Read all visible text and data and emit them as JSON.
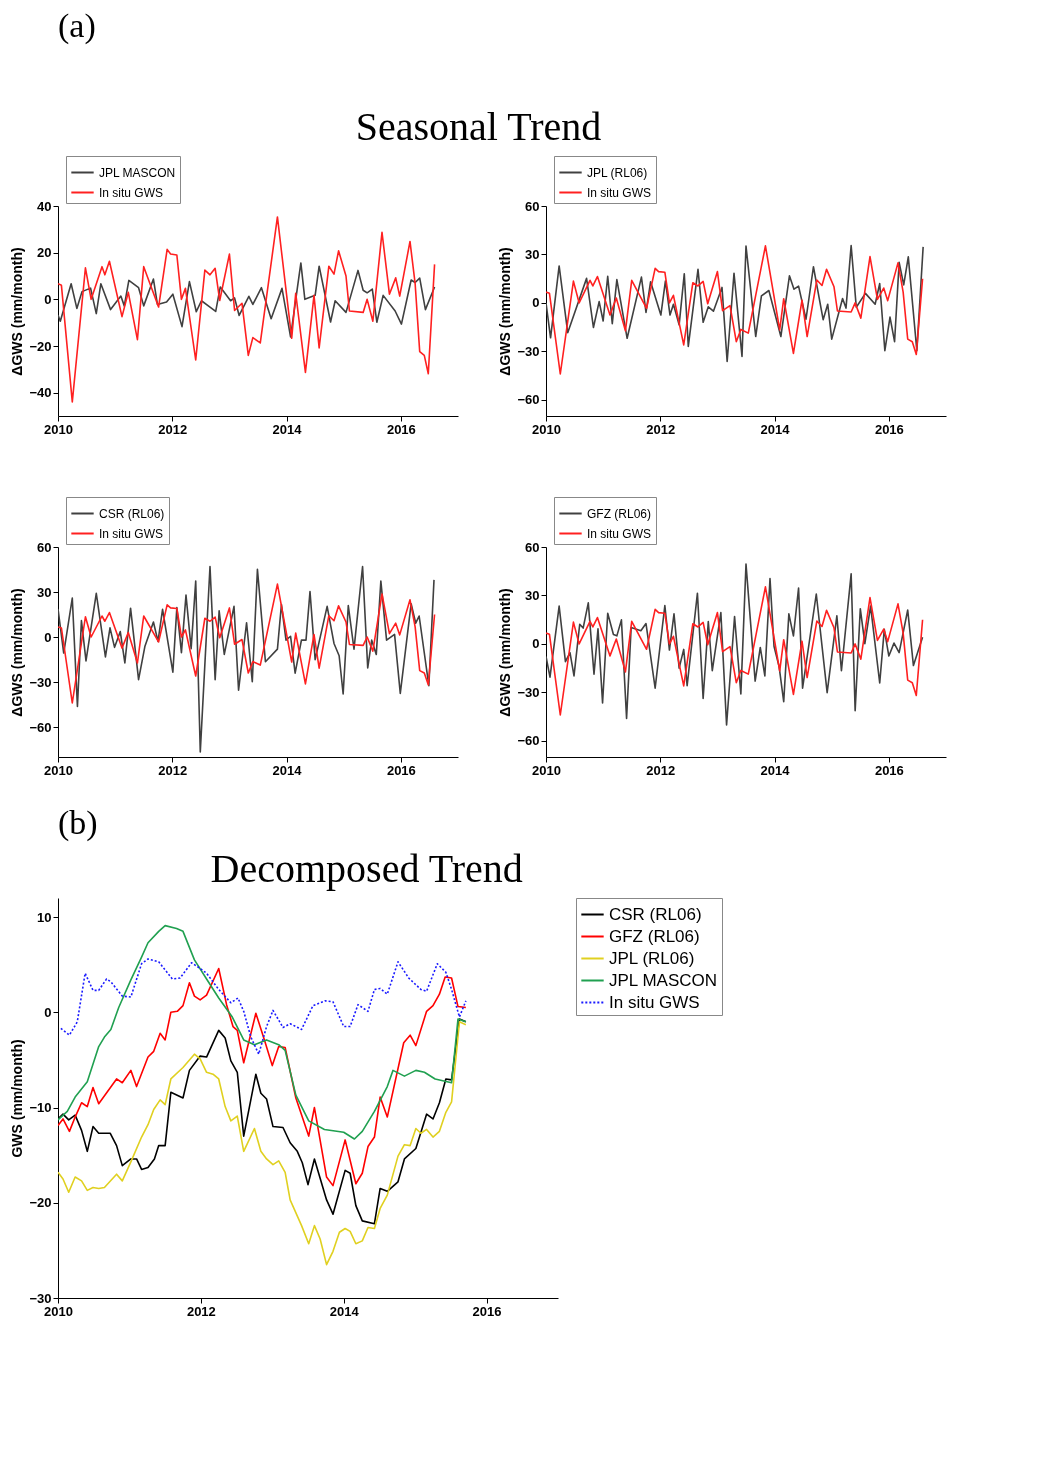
{
  "chart_data": [
    {
      "type": "line",
      "title": "Seasonal Trend",
      "annotations": [
        "(a)"
      ],
      "ylabel": "ΔGWS (mm/month)",
      "xlim": [
        2010,
        2017
      ],
      "xticks": [
        2010,
        2012,
        2014,
        2016
      ],
      "ylim": [
        -50,
        40
      ],
      "yticks": [
        -40,
        -20,
        0,
        20,
        40
      ],
      "grid": false,
      "legend": "top left",
      "series": [
        {
          "name": "JPL MASCON",
          "color": "#404040",
          "x": [
            2010.0,
            2010.04,
            2010.23,
            2010.33,
            2010.42,
            2010.57,
            2010.67,
            2010.75,
            2010.92,
            2011.1,
            2011.16,
            2011.24,
            2011.41,
            2011.5,
            2011.67,
            2011.74,
            2011.9,
            2012.01,
            2012.17,
            2012.3,
            2012.42,
            2012.51,
            2012.66,
            2012.76,
            2012.84,
            2013.02,
            2013.09,
            2013.17,
            2013.34,
            2013.41,
            2013.56,
            2013.73,
            2013.92,
            2014.07,
            2014.25,
            2014.32,
            2014.5,
            2014.57,
            2014.77,
            2014.85,
            2015.04,
            2015.25,
            2015.34,
            2015.41,
            2015.5,
            2015.58,
            2015.69,
            2015.9,
            2016.01,
            2016.18,
            2016.25,
            2016.33,
            2016.43,
            2016.59
          ],
          "values": [
            -6.7,
            -9.4,
            6.7,
            -3.9,
            3.3,
            4.8,
            -6.1,
            6.7,
            -4.4,
            1.4,
            -2.8,
            8.1,
            5,
            -2.8,
            8.7,
            -2.2,
            -1.1,
            2.2,
            -11.7,
            7.6,
            -5.3,
            -0.6,
            -3.3,
            -5.2,
            5.3,
            -0.6,
            0.6,
            -6.9,
            1.3,
            -2.2,
            5,
            -8.3,
            4.7,
            -16.1,
            15.6,
            0,
            1.7,
            14.2,
            -9.7,
            -0.6,
            -5.6,
            12.4,
            3.9,
            2.8,
            4.4,
            -9.8,
            1.7,
            -5,
            -10.6,
            8.3,
            7.2,
            9.1,
            -4.4,
            5.3
          ]
        },
        {
          "name": "In situ GWS",
          "color": "#ff2020",
          "x": [
            2010.0,
            2010.06,
            2010.25,
            2010.48,
            2010.58,
            2010.77,
            2010.82,
            2010.9,
            2011.12,
            2011.23,
            2011.39,
            2011.5,
            2011.76,
            2011.91,
            2011.97,
            2012.08,
            2012.16,
            2012.23,
            2012.41,
            2012.57,
            2012.66,
            2012.75,
            2012.83,
            2013.0,
            2013.09,
            2013.22,
            2013.33,
            2013.41,
            2013.54,
            2013.84,
            2014.09,
            2014.16,
            2014.33,
            2014.48,
            2014.57,
            2014.74,
            2014.83,
            2014.91,
            2015.04,
            2015.1,
            2015.34,
            2015.41,
            2015.51,
            2015.67,
            2015.8,
            2015.91,
            2015.98,
            2016.16,
            2016.25,
            2016.33,
            2016.41,
            2016.48,
            2016.59
          ],
          "values": [
            6.7,
            6,
            -44,
            13.5,
            0,
            14,
            10.5,
            16.3,
            -7.4,
            3,
            -17.3,
            14,
            -3.3,
            21.4,
            19.4,
            19,
            0,
            4.7,
            -26,
            12.5,
            10.5,
            13.3,
            -0.5,
            19.4,
            -4.8,
            -1.7,
            -24,
            -16.4,
            -18.7,
            35.3,
            -16.7,
            2.6,
            -31.3,
            1.7,
            -20.8,
            14.2,
            10.8,
            20.8,
            10,
            -5,
            -5.6,
            0,
            -9.4,
            28.7,
            2.2,
            9.2,
            1.4,
            24.8,
            6.7,
            -22.4,
            -24,
            -31.9,
            15
          ]
        }
      ]
    },
    {
      "type": "line",
      "ylabel": "ΔGWS (mm/month)",
      "xlim": [
        2010,
        2017
      ],
      "xticks": [
        2010,
        2012,
        2014,
        2016
      ],
      "ylim": [
        -70,
        60
      ],
      "yticks": [
        -60,
        -30,
        0,
        30,
        60
      ],
      "grid": false,
      "legend": "top left",
      "series": [
        {
          "name": "JPL (RL06)",
          "color": "#404040",
          "x": [
            2010,
            2010.08,
            2010.23,
            2010.38,
            2010.71,
            2010.83,
            2010.93,
            2011.0,
            2011.08,
            2011.16,
            2011.24,
            2011.42,
            2011.67,
            2011.75,
            2011.83,
            2012.01,
            2012.09,
            2012.17,
            2012.23,
            2012.33,
            2012.42,
            2012.49,
            2012.66,
            2012.75,
            2012.84,
            2012.93,
            2013.08,
            2013.17,
            2013.29,
            2013.43,
            2013.5,
            2013.67,
            2013.77,
            2013.9,
            2014.11,
            2014.26,
            2014.34,
            2014.42,
            2014.55,
            2014.68,
            2014.85,
            2014.93,
            2015.0,
            2015.19,
            2015.25,
            2015.34,
            2015.43,
            2015.59,
            2015.76,
            2015.84,
            2015.93,
            2016.02,
            2016.1,
            2016.18,
            2016.26,
            2016.34,
            2016.49,
            2016.6
          ],
          "values": [
            0,
            -21.6,
            22.9,
            -18.4,
            15.2,
            -15.2,
            0.8,
            -11.2,
            16.5,
            -12.8,
            14.4,
            -21.9,
            16,
            -5.9,
            13.1,
            -7.5,
            13.6,
            -7.5,
            -0.8,
            -13.6,
            18.1,
            -26.9,
            20.8,
            -12,
            -2.4,
            -5.1,
            9.6,
            -36.3,
            18.4,
            -33.1,
            35.2,
            -20.8,
            4.3,
            7.7,
            -20.8,
            16.8,
            8.5,
            10.4,
            -10.1,
            22.4,
            -10.4,
            -0.8,
            -22.4,
            2.7,
            -3.2,
            35.5,
            -2.7,
            5.9,
            -0.8,
            12,
            -29.6,
            -8.8,
            -24,
            25.1,
            11.2,
            28.5,
            -29.6,
            34.7
          ]
        },
        {
          "name": "In situ GWS",
          "color": "#ff2020",
          "x": [
            2010.0,
            2010.06,
            2010.25,
            2010.48,
            2010.58,
            2010.77,
            2010.82,
            2010.9,
            2011.12,
            2011.23,
            2011.39,
            2011.5,
            2011.76,
            2011.91,
            2011.97,
            2012.08,
            2012.16,
            2012.23,
            2012.41,
            2012.57,
            2012.66,
            2012.75,
            2012.83,
            2013.0,
            2013.09,
            2013.22,
            2013.33,
            2013.41,
            2013.54,
            2013.84,
            2014.09,
            2014.16,
            2014.33,
            2014.48,
            2014.57,
            2014.74,
            2014.83,
            2014.91,
            2015.04,
            2015.1,
            2015.34,
            2015.41,
            2015.51,
            2015.67,
            2015.8,
            2015.91,
            2015.98,
            2016.16,
            2016.25,
            2016.33,
            2016.41,
            2016.48,
            2016.59
          ],
          "values": [
            6.7,
            6,
            -44,
            13.5,
            0,
            14,
            10.5,
            16.3,
            -7.4,
            3,
            -17.3,
            14,
            -3.3,
            21.4,
            19.4,
            19,
            0,
            4.7,
            -26,
            12.5,
            10.5,
            13.3,
            -0.5,
            19.4,
            -4.8,
            -1.7,
            -24,
            -16.4,
            -18.7,
            35.3,
            -16.7,
            2.6,
            -31.3,
            1.7,
            -20.8,
            14.2,
            10.8,
            20.8,
            10,
            -5,
            -5.6,
            0,
            -9.4,
            28.7,
            2.2,
            9.2,
            1.4,
            24.8,
            6.7,
            -22.4,
            -24,
            -31.9,
            15
          ]
        }
      ]
    },
    {
      "type": "line",
      "ylabel": "ΔGWS (mm/month)",
      "xlim": [
        2010,
        2017
      ],
      "xticks": [
        2010,
        2012,
        2014,
        2016
      ],
      "ylim": [
        -80,
        60
      ],
      "yticks": [
        -60,
        -30,
        0,
        30,
        60
      ],
      "grid": false,
      "legend": "top left",
      "series": [
        {
          "name": "CSR (RL06)",
          "color": "#404040",
          "x": [
            2010,
            2010.1,
            2010.25,
            2010.34,
            2010.41,
            2010.49,
            2010.67,
            2010.83,
            2010.91,
            2010.99,
            2011.09,
            2011.17,
            2011.27,
            2011.41,
            2011.52,
            2011.67,
            2011.75,
            2011.83,
            2012.01,
            2012.08,
            2012.16,
            2012.24,
            2012.33,
            2012.41,
            2012.49,
            2012.66,
            2012.75,
            2012.82,
            2012.91,
            2013.08,
            2013.16,
            2013.3,
            2013.4,
            2013.49,
            2013.63,
            2013.84,
            2013.91,
            2013.99,
            2014.07,
            2014.15,
            2014.26,
            2014.34,
            2014.41,
            2014.5,
            2014.71,
            2014.83,
            2014.92,
            2014.99,
            2015.08,
            2015.18,
            2015.33,
            2015.42,
            2015.49,
            2015.57,
            2015.65,
            2015.75,
            2015.89,
            2015.99,
            2016.18,
            2016.26,
            2016.32,
            2016.49,
            2016.58
          ],
          "values": [
            18.7,
            -10.7,
            26,
            -46.3,
            10.9,
            -15.9,
            29.1,
            -13.3,
            6.1,
            -6.9,
            3.6,
            -17.3,
            19.2,
            -28.4,
            -6.4,
            10,
            -2.9,
            18.4,
            -23.4,
            19.6,
            -10.4,
            27.9,
            -7.8,
            37.3,
            -76.6,
            47,
            -28.4,
            17.5,
            -11.6,
            20.4,
            -35.5,
            9.5,
            -29.8,
            45.1,
            -16.5,
            -8.1,
            21.7,
            -2.1,
            0.5,
            -24.1,
            -2.1,
            -2.1,
            30.3,
            -15.1,
            20.4,
            -4.3,
            -12.5,
            -38,
            21,
            -8.1,
            47,
            -20.6,
            -2.1,
            -11.6,
            37.3,
            -2.1,
            1.7,
            -37.6,
            22.2,
            9.2,
            14,
            -32.4,
            38.1
          ]
        },
        {
          "name": "In situ GWS",
          "color": "#ff2020",
          "x": [
            2010.0,
            2010.06,
            2010.25,
            2010.48,
            2010.58,
            2010.77,
            2010.82,
            2010.9,
            2011.12,
            2011.23,
            2011.39,
            2011.5,
            2011.76,
            2011.91,
            2011.97,
            2012.08,
            2012.16,
            2012.23,
            2012.41,
            2012.57,
            2012.66,
            2012.75,
            2012.83,
            2013.0,
            2013.09,
            2013.22,
            2013.33,
            2013.41,
            2013.54,
            2013.84,
            2014.09,
            2014.16,
            2014.33,
            2014.48,
            2014.57,
            2014.74,
            2014.83,
            2014.91,
            2015.04,
            2015.1,
            2015.34,
            2015.41,
            2015.51,
            2015.67,
            2015.8,
            2015.91,
            2015.98,
            2016.16,
            2016.25,
            2016.33,
            2016.41,
            2016.48,
            2016.59
          ],
          "values": [
            6.7,
            6,
            -44,
            13.5,
            0,
            14,
            10.5,
            16.3,
            -7.4,
            3,
            -17.3,
            14,
            -3.3,
            21.4,
            19.4,
            19,
            0,
            4.7,
            -26,
            12.5,
            10.5,
            13.3,
            -0.5,
            19.4,
            -4.8,
            -1.7,
            -24,
            -16.4,
            -18.7,
            35.3,
            -16.7,
            2.6,
            -31.3,
            1.7,
            -20.8,
            14.2,
            10.8,
            20.8,
            10,
            -5,
            -5.6,
            0,
            -9.4,
            28.7,
            2.2,
            9.2,
            1.4,
            24.8,
            6.7,
            -22.4,
            -24,
            -31.9,
            15
          ]
        }
      ]
    },
    {
      "type": "line",
      "ylabel": "ΔGWS (mm/month)",
      "xlim": [
        2010,
        2017
      ],
      "xticks": [
        2010,
        2012,
        2014,
        2016
      ],
      "ylim": [
        -70,
        60
      ],
      "yticks": [
        -60,
        -30,
        0,
        30,
        60
      ],
      "grid": false,
      "legend": "top left",
      "series": [
        {
          "name": "GFZ (RL06)",
          "color": "#404040",
          "x": [
            2010,
            2010.07,
            2010.23,
            2010.34,
            2010.42,
            2010.49,
            2010.59,
            2010.65,
            2010.74,
            2010.84,
            2010.91,
            2010.99,
            2011.08,
            2011.18,
            2011.24,
            2011.32,
            2011.41,
            2011.49,
            2011.66,
            2011.75,
            2011.91,
            2012.08,
            2012.16,
            2012.24,
            2012.33,
            2012.41,
            2012.47,
            2012.65,
            2012.75,
            2012.84,
            2012.91,
            2013.06,
            2013.16,
            2013.3,
            2013.41,
            2013.5,
            2013.66,
            2013.75,
            2013.83,
            2013.92,
            2013.99,
            2014.08,
            2014.16,
            2014.25,
            2014.33,
            2014.42,
            2014.49,
            2014.73,
            2014.92,
            2015.09,
            2015.17,
            2015.34,
            2015.41,
            2015.5,
            2015.58,
            2015.68,
            2015.84,
            2015.92,
            2016,
            2016.09,
            2016.18,
            2016.33,
            2016.43,
            2016.59
          ],
          "values": [
            -7.8,
            -20.6,
            23.4,
            -11,
            -5.4,
            -19.8,
            12.2,
            9.8,
            25.4,
            -18.7,
            9.4,
            -36.6,
            19,
            5.8,
            5,
            14.9,
            -46.2,
            10.1,
            8.2,
            12.6,
            -27.4,
            23.8,
            -3.8,
            18.6,
            -15,
            -3.4,
            -25.8,
            31.4,
            -33.8,
            13.8,
            -16.6,
            19.4,
            -50.2,
            17,
            -31,
            49.4,
            -23,
            -2.2,
            -19.8,
            40.5,
            -1.4,
            -14.2,
            -35.8,
            18.6,
            5,
            34.6,
            -27.4,
            30.9,
            -30.2,
            17.4,
            -16.6,
            43.4,
            -41.4,
            21.8,
            0.2,
            23.4,
            -24.2,
            9,
            -7.5,
            0.5,
            -5.4,
            21,
            -13.4,
            4.2
          ]
        },
        {
          "name": "In situ GWS",
          "color": "#ff2020",
          "x": [
            2010.0,
            2010.06,
            2010.25,
            2010.48,
            2010.58,
            2010.77,
            2010.82,
            2010.9,
            2011.12,
            2011.23,
            2011.39,
            2011.5,
            2011.76,
            2011.91,
            2011.97,
            2012.08,
            2012.16,
            2012.23,
            2012.41,
            2012.57,
            2012.66,
            2012.75,
            2012.83,
            2013.0,
            2013.09,
            2013.22,
            2013.33,
            2013.41,
            2013.54,
            2013.84,
            2014.09,
            2014.16,
            2014.33,
            2014.48,
            2014.57,
            2014.74,
            2014.83,
            2014.91,
            2015.04,
            2015.1,
            2015.34,
            2015.41,
            2015.51,
            2015.67,
            2015.8,
            2015.91,
            2015.98,
            2016.16,
            2016.25,
            2016.33,
            2016.41,
            2016.48,
            2016.59
          ],
          "values": [
            6.7,
            6,
            -44,
            13.5,
            0,
            14,
            10.5,
            16.3,
            -7.4,
            3,
            -17.3,
            14,
            -3.3,
            21.4,
            19.4,
            19,
            0,
            4.7,
            -26,
            12.5,
            10.5,
            13.3,
            -0.5,
            19.4,
            -4.8,
            -1.7,
            -24,
            -16.4,
            -18.7,
            35.3,
            -16.7,
            2.6,
            -31.3,
            1.7,
            -20.8,
            14.2,
            10.8,
            20.8,
            10,
            -5,
            -5.6,
            0,
            -9.4,
            28.7,
            2.2,
            9.2,
            1.4,
            24.8,
            6.7,
            -22.4,
            -24,
            -31.9,
            15
          ]
        }
      ]
    },
    {
      "type": "line",
      "title": "Decomposed Trend",
      "annotations": [
        "(b)"
      ],
      "ylabel": "GWS (mm/month)",
      "xlim": [
        2010,
        2017
      ],
      "xticks": [
        2010,
        2012,
        2014,
        2016
      ],
      "ylim": [
        -30,
        12
      ],
      "yticks": [
        -30,
        -20,
        -10,
        0,
        10
      ],
      "grid": false,
      "legend": "right",
      "series": [
        {
          "name": "CSR (RL06)",
          "color": "#000000",
          "x": [
            2010,
            2010.07,
            2010.15,
            2010.24,
            2010.33,
            2010.41,
            2010.49,
            2010.57,
            2010.73,
            2010.82,
            2010.9,
            2011.02,
            2011.1,
            2011.17,
            2011.26,
            2011.35,
            2011.41,
            2011.5,
            2011.58,
            2011.75,
            2011.84,
            2011.99,
            2012.08,
            2012.25,
            2012.34,
            2012.42,
            2012.51,
            2012.6,
            2012.77,
            2012.84,
            2012.92,
            2013.01,
            2013.15,
            2013.25,
            2013.35,
            2013.42,
            2013.5,
            2013.59,
            2013.76,
            2013.85,
            2014.02,
            2014.09,
            2014.17,
            2014.26,
            2014.43,
            2014.51,
            2014.61,
            2014.76,
            2014.85,
            2015.01,
            2015.16,
            2015.25,
            2015.34,
            2015.43,
            2015.51,
            2015.62,
            2015.71
          ],
          "values": [
            -11.2,
            -10.7,
            -11.3,
            -10.8,
            -12.4,
            -14.6,
            -12,
            -12.7,
            -12.7,
            -14,
            -16.1,
            -15.4,
            -15.4,
            -16.5,
            -16.3,
            -15.4,
            -14,
            -14,
            -8.4,
            -9,
            -6.1,
            -4.6,
            -4.7,
            -1.9,
            -2.7,
            -5.1,
            -6.3,
            -13,
            -6.5,
            -8.5,
            -9.1,
            -12,
            -12.1,
            -13.7,
            -14.6,
            -15.8,
            -18.1,
            -15.4,
            -19.7,
            -21.2,
            -16.6,
            -16.9,
            -20.3,
            -21.9,
            -22.2,
            -18.5,
            -18.8,
            -17.8,
            -15.4,
            -14.3,
            -10.7,
            -11.2,
            -9.5,
            -7,
            -7.1,
            -0.7,
            -1
          ]
        },
        {
          "name": "GFZ (RL06)",
          "color": "#ff0000",
          "x": [
            2010,
            2010.07,
            2010.16,
            2010.24,
            2010.33,
            2010.41,
            2010.49,
            2010.57,
            2010.82,
            2010.9,
            2011.02,
            2011.1,
            2011.26,
            2011.34,
            2011.43,
            2011.5,
            2011.58,
            2011.67,
            2011.75,
            2011.84,
            2011.91,
            2011.99,
            2012.08,
            2012.25,
            2012.36,
            2012.45,
            2012.51,
            2012.6,
            2012.77,
            2012.89,
            2013,
            2013.09,
            2013.18,
            2013.33,
            2013.51,
            2013.59,
            2013.76,
            2013.85,
            2014.02,
            2014.17,
            2014.26,
            2014.34,
            2014.43,
            2014.51,
            2014.61,
            2014.84,
            2014.93,
            2015.01,
            2015.16,
            2015.25,
            2015.34,
            2015.42,
            2015.51,
            2015.6,
            2015.71
          ],
          "values": [
            -11.9,
            -11.2,
            -12.5,
            -11,
            -9.5,
            -9.9,
            -7.9,
            -9.6,
            -7,
            -7.4,
            -6.1,
            -7.8,
            -4.7,
            -4.1,
            -2.2,
            -2.9,
            0,
            0.1,
            0.7,
            3.1,
            1.7,
            1.3,
            1.8,
            4.6,
            0.8,
            -1.5,
            -1.9,
            -5.3,
            -0.1,
            -2.9,
            -5.6,
            -3.6,
            -3.7,
            -9,
            -13,
            -10,
            -17.3,
            -18.2,
            -13.4,
            -18,
            -16.9,
            -14.1,
            -13.1,
            -8.9,
            -11,
            -3.2,
            -2.4,
            -3.5,
            0.1,
            0.7,
            1.9,
            3.7,
            3.6,
            0.6,
            0.5
          ]
        },
        {
          "name": "JPL (RL06)",
          "color": "#e0d020",
          "x": [
            2010,
            2010.07,
            2010.15,
            2010.24,
            2010.33,
            2010.41,
            2010.49,
            2010.57,
            2010.65,
            2010.82,
            2010.9,
            2011.02,
            2011.17,
            2011.26,
            2011.34,
            2011.43,
            2011.5,
            2011.58,
            2011.75,
            2011.91,
            2011.99,
            2012.08,
            2012.17,
            2012.25,
            2012.34,
            2012.42,
            2012.51,
            2012.6,
            2012.75,
            2012.84,
            2012.92,
            2013.01,
            2013.09,
            2013.18,
            2013.25,
            2013.41,
            2013.51,
            2013.59,
            2013.67,
            2013.76,
            2013.85,
            2013.94,
            2014.02,
            2014.09,
            2014.17,
            2014.26,
            2014.34,
            2014.43,
            2014.51,
            2014.61,
            2014.76,
            2014.85,
            2014.93,
            2015.01,
            2015.08,
            2015.16,
            2015.25,
            2015.34,
            2015.43,
            2015.51,
            2015.62,
            2015.71
          ],
          "values": [
            -16.8,
            -17.5,
            -18.9,
            -17.3,
            -17.7,
            -18.7,
            -18.4,
            -18.5,
            -18.4,
            -17,
            -17.7,
            -15.7,
            -13.1,
            -11.8,
            -10.2,
            -9.2,
            -9.7,
            -7,
            -5.8,
            -4.4,
            -4.9,
            -6.3,
            -6.5,
            -7,
            -9.9,
            -11.4,
            -10.9,
            -14.6,
            -12.2,
            -14.6,
            -15.4,
            -16,
            -15.6,
            -16.8,
            -19.7,
            -22.4,
            -24.3,
            -22.4,
            -23.8,
            -26.5,
            -25.1,
            -23.1,
            -22.7,
            -23,
            -24.3,
            -24,
            -22.6,
            -22.7,
            -20.6,
            -19.2,
            -15.1,
            -13.9,
            -14,
            -12.2,
            -12.7,
            -12.3,
            -13.1,
            -12.5,
            -10.5,
            -9.4,
            -1,
            -1.3
          ]
        },
        {
          "name": "JPL MASCON",
          "color": "#20a050",
          "x": [
            2010,
            2010.13,
            2010.24,
            2010.41,
            2010.57,
            2010.65,
            2010.74,
            2010.85,
            2011.02,
            2011.17,
            2011.26,
            2011.41,
            2011.5,
            2011.66,
            2011.75,
            2011.91,
            2012.08,
            2012.25,
            2012.44,
            2012.6,
            2012.75,
            2012.92,
            2013.09,
            2013.18,
            2013.33,
            2013.51,
            2013.73,
            2014,
            2014.15,
            2014.26,
            2014.43,
            2014.61,
            2014.69,
            2014.85,
            2015.01,
            2015.13,
            2015.28,
            2015.51,
            2015.6,
            2015.71
          ],
          "values": [
            -11.3,
            -10.4,
            -8.9,
            -7.3,
            -3.6,
            -2.6,
            -1.8,
            0.5,
            3.4,
            5.8,
            7.3,
            8.5,
            9.1,
            8.8,
            8.5,
            5.5,
            3.5,
            1.5,
            -0.5,
            -2.9,
            -3.4,
            -2.9,
            -3.4,
            -4,
            -8.7,
            -11.4,
            -12.3,
            -12.6,
            -13.3,
            -12.5,
            -10.4,
            -7.8,
            -6.1,
            -6.7,
            -6.1,
            -6.3,
            -7,
            -7.4,
            -0.7,
            -1
          ]
        },
        {
          "name": "In situ GWS",
          "color": "#1a1aff",
          "line_style": "dotted",
          "x": [
            2010.04,
            2010.16,
            2010.27,
            2010.38,
            2010.49,
            2010.57,
            2010.68,
            2010.74,
            2010.9,
            2011.02,
            2011.17,
            2011.26,
            2011.41,
            2011.6,
            2011.71,
            2011.87,
            2011.99,
            2012.08,
            2012.25,
            2012.42,
            2012.52,
            2012.6,
            2012.7,
            2012.81,
            2012.92,
            2013.01,
            2013.15,
            2013.25,
            2013.41,
            2013.57,
            2013.74,
            2013.85,
            2014,
            2014.09,
            2014.2,
            2014.34,
            2014.43,
            2014.51,
            2014.61,
            2014.76,
            2014.91,
            2015.08,
            2015.16,
            2015.31,
            2015.43,
            2015.51,
            2015.62,
            2015.71
          ],
          "values": [
            -1.7,
            -2.4,
            -1,
            4.1,
            2.3,
            2.3,
            3.5,
            3.2,
            1.7,
            1.6,
            5.1,
            5.6,
            5.3,
            3.5,
            3.6,
            5.2,
            4.6,
            4.1,
            2.4,
            1,
            1.5,
            0.1,
            -2.6,
            -4.4,
            -1.5,
            0.2,
            -1.6,
            -1.2,
            -1.8,
            0.7,
            1.2,
            1.1,
            -1.5,
            -1.5,
            0.8,
            0.1,
            2.4,
            2.5,
            1.9,
            5.3,
            3.6,
            2.4,
            2.2,
            5.1,
            4.2,
            2.4,
            -0.5,
            1.2
          ]
        }
      ]
    }
  ]
}
